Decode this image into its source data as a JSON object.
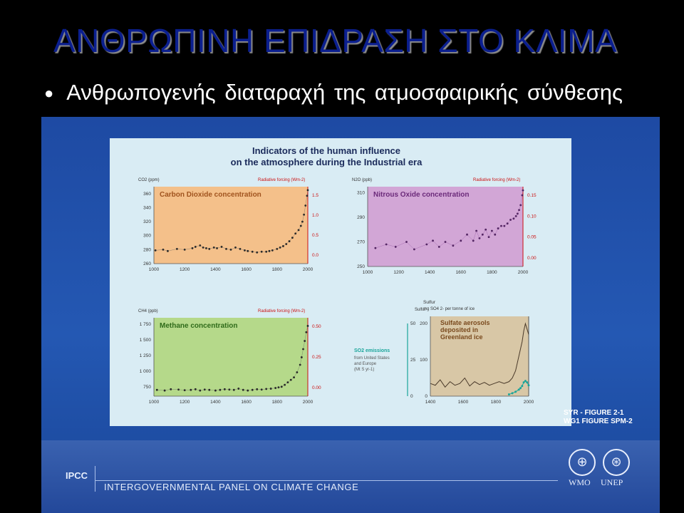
{
  "slide": {
    "title": "ΑΝΘΡΩΠΙΝΗ ΕΠΙΔΡΑΣΗ ΣΤΟ ΚΛΙΜΑ",
    "bullet": "Ανθρωπογενής διαταραχή της  ατμοσφαιρικής σύνθεσης"
  },
  "figure": {
    "title_line1": "Indicators of the human influence",
    "title_line2": "on the atmosphere during the Industrial era",
    "reference_line1": "SYR - FIGURE 2-1",
    "reference_line2": "WG1 FIGURE SPM-2"
  },
  "footer": {
    "org_short": "IPCC",
    "org_full": "INTERGOVERNMENTAL PANEL ON CLIMATE CHANGE",
    "logo1_label": "WMO",
    "logo2_label": "UNEP"
  },
  "colors": {
    "title": "#0b1f8f",
    "co2_panel": "#f4c08a",
    "n2o_panel": "#d2a6d6",
    "ch4_panel": "#b5d98a",
    "sulfate_panel": "#d8c7a6",
    "axis_red": "#cc1111",
    "so2_teal": "#1aa59a"
  },
  "chart_data": [
    {
      "type": "scatter",
      "title": "Carbon Dioxide concentration",
      "ylabel": "CO2 (ppm)",
      "y2label": "Radiative forcing (Wm-2)",
      "xlim": [
        1000,
        2000
      ],
      "ylim": [
        260,
        370
      ],
      "x_ticks": [
        1000,
        1200,
        1400,
        1600,
        1800,
        2000
      ],
      "y_ticks": [
        260,
        280,
        300,
        320,
        340,
        360
      ],
      "y2_ticks": [
        "1.5",
        "1.0",
        "0.5",
        "0.0"
      ],
      "x": [
        1010,
        1060,
        1090,
        1150,
        1200,
        1250,
        1270,
        1300,
        1320,
        1340,
        1360,
        1390,
        1410,
        1440,
        1470,
        1500,
        1530,
        1560,
        1590,
        1610,
        1640,
        1670,
        1700,
        1730,
        1750,
        1770,
        1800,
        1820,
        1840,
        1860,
        1880,
        1900,
        1920,
        1940,
        1955,
        1965,
        1975,
        1985,
        1995,
        2000
      ],
      "y": [
        279,
        280,
        278,
        281,
        280,
        282,
        284,
        286,
        283,
        282,
        281,
        283,
        282,
        284,
        281,
        280,
        283,
        281,
        279,
        278,
        277,
        276,
        277,
        277,
        278,
        279,
        281,
        283,
        285,
        288,
        292,
        297,
        303,
        308,
        314,
        320,
        330,
        343,
        357,
        365
      ]
    },
    {
      "type": "scatter",
      "title": "Nitrous Oxide concentration",
      "ylabel": "N2O (ppb)",
      "y2label": "Radiative forcing (Wm-2)",
      "xlim": [
        1000,
        2000
      ],
      "ylim": [
        250,
        315
      ],
      "x_ticks": [
        1000,
        1200,
        1400,
        1600,
        1800,
        2000
      ],
      "y_ticks": [
        250,
        270,
        290,
        310
      ],
      "y2_ticks": [
        "0.15",
        "0.10",
        "0.05",
        "0.00"
      ],
      "x": [
        1050,
        1120,
        1180,
        1250,
        1300,
        1380,
        1420,
        1460,
        1500,
        1550,
        1600,
        1640,
        1680,
        1700,
        1720,
        1740,
        1760,
        1780,
        1800,
        1820,
        1840,
        1860,
        1880,
        1900,
        1920,
        1940,
        1955,
        1965,
        1975,
        1985,
        1995,
        2000
      ],
      "y": [
        265,
        268,
        266,
        270,
        264,
        268,
        271,
        266,
        270,
        267,
        271,
        276,
        271,
        279,
        273,
        276,
        280,
        274,
        279,
        276,
        281,
        283,
        283,
        285,
        288,
        289,
        291,
        293,
        296,
        300,
        308,
        312
      ]
    },
    {
      "type": "scatter",
      "title": "Methane concentration",
      "ylabel": "CH4 (ppb)",
      "y2label": "Radiative forcing (Wm-2)",
      "xlim": [
        1000,
        2000
      ],
      "ylim": [
        600,
        1850
      ],
      "x_ticks": [
        1000,
        1200,
        1400,
        1600,
        1800,
        2000
      ],
      "y_ticks": [
        750,
        1000,
        1250,
        1500,
        1750
      ],
      "y_tick_labels": [
        "750",
        "1 000",
        "1 250",
        "1 500",
        "1 750"
      ],
      "y2_ticks": [
        "0.50",
        "0.25",
        "0.00"
      ],
      "x": [
        1020,
        1070,
        1110,
        1160,
        1200,
        1240,
        1270,
        1300,
        1330,
        1360,
        1400,
        1430,
        1460,
        1490,
        1520,
        1550,
        1580,
        1610,
        1640,
        1670,
        1700,
        1730,
        1760,
        1790,
        1810,
        1830,
        1850,
        1870,
        1890,
        1910,
        1930,
        1950,
        1960,
        1970,
        1980,
        1990,
        2000
      ],
      "y": [
        700,
        690,
        710,
        705,
        695,
        700,
        710,
        690,
        705,
        700,
        690,
        700,
        710,
        705,
        700,
        720,
        700,
        690,
        700,
        710,
        705,
        715,
        720,
        730,
        740,
        750,
        780,
        820,
        860,
        900,
        980,
        1100,
        1220,
        1350,
        1480,
        1620,
        1720
      ]
    },
    {
      "type": "line",
      "title": "Sulfate aerosols deposited in Greenland ice",
      "ylabel": "Sulfur mg SO4 2- per tonne of ice",
      "y2label": "SO2 emissions from United States and Europe (Mt S yr-1)",
      "xlim": [
        1400,
        2000
      ],
      "ylim": [
        0,
        220
      ],
      "x_ticks": [
        1400,
        1600,
        1800,
        2000
      ],
      "y_ticks": [
        0,
        100,
        200
      ],
      "y2_ticks": [
        0,
        25,
        50
      ],
      "series": [
        {
          "x": [
            1400,
            1430,
            1460,
            1490,
            1520,
            1550,
            1580,
            1610,
            1640,
            1670,
            1700,
            1730,
            1760,
            1790,
            1820,
            1850,
            1880,
            1900,
            1920,
            1940,
            1960,
            1970,
            1980,
            1990,
            2000
          ],
          "y": [
            35,
            30,
            45,
            25,
            40,
            30,
            35,
            50,
            28,
            40,
            32,
            38,
            30,
            35,
            40,
            35,
            40,
            50,
            70,
            110,
            150,
            180,
            200,
            185,
            170
          ]
        },
        {
          "x": [
            1880,
            1900,
            1920,
            1940,
            1950,
            1960,
            1970,
            1980,
            1990,
            2000
          ],
          "y": [
            5,
            8,
            12,
            18,
            22,
            28,
            38,
            42,
            38,
            30
          ]
        }
      ]
    }
  ]
}
